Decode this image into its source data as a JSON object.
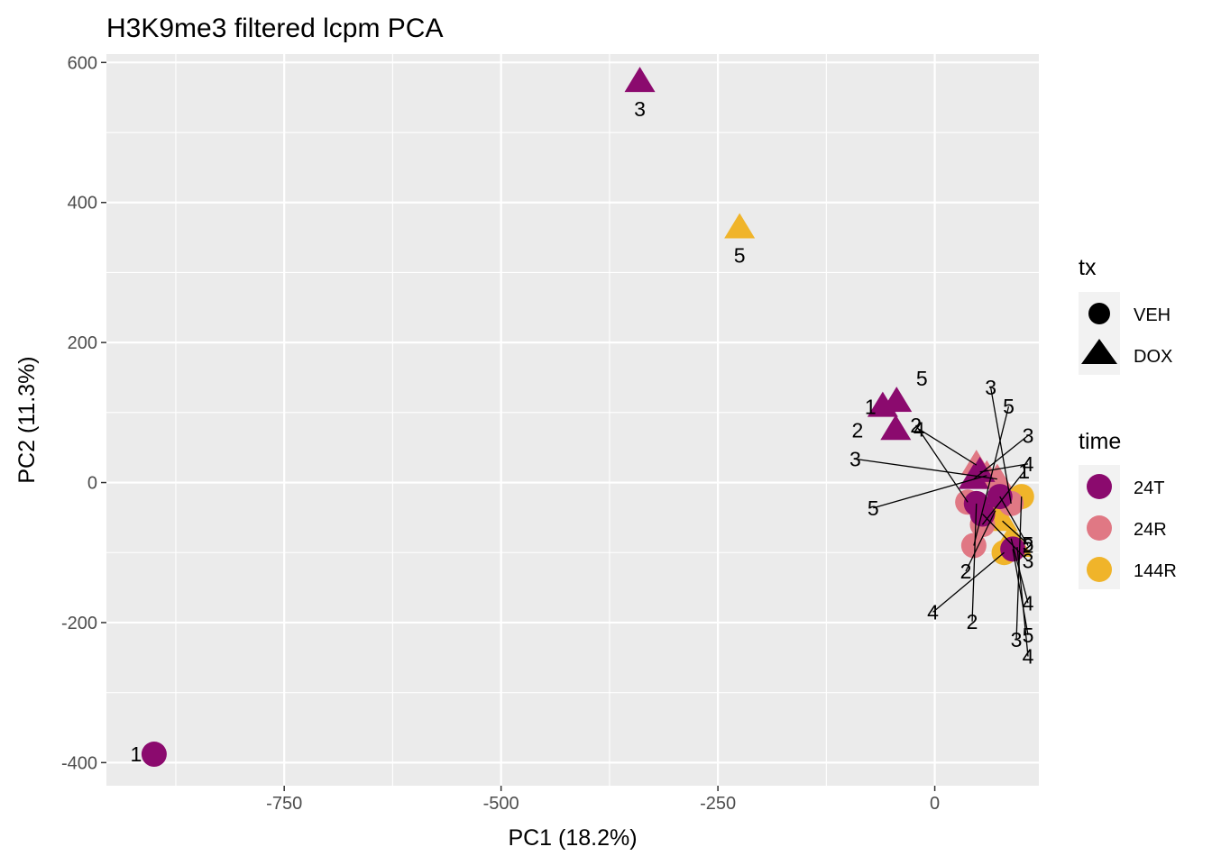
{
  "chart_data": {
    "type": "scatter",
    "title": "H3K9me3 filtered lcpm PCA",
    "xlabel": "PC1 (18.2%)",
    "ylabel": "PC2 (11.3%)",
    "xlim": [
      -955,
      120
    ],
    "ylim": [
      -433,
      612
    ],
    "xticks": [
      -750,
      -500,
      -250,
      0
    ],
    "xtick_labels": [
      "-750",
      "-500",
      "-250",
      "0"
    ],
    "yticks": [
      -400,
      -200,
      0,
      200,
      400,
      600
    ],
    "ytick_labels": [
      "-400",
      "-200",
      "0",
      "200",
      "400",
      "600"
    ],
    "grid": true,
    "legend_position": "right",
    "legends": {
      "tx": {
        "title": "tx",
        "entries": [
          {
            "label": "VEH",
            "shape": "circle"
          },
          {
            "label": "DOX",
            "shape": "triangle"
          }
        ]
      },
      "time": {
        "title": "time",
        "entries": [
          {
            "label": "24T",
            "color": "#8B0A6E"
          },
          {
            "label": "24R",
            "color": "#E07884"
          },
          {
            "label": "144R",
            "color": "#F0B42A"
          }
        ]
      }
    },
    "points": [
      {
        "x": 78,
        "y": -55,
        "tx": "DOX",
        "time": "144R",
        "label": "5"
      },
      {
        "x": 88,
        "y": -80,
        "tx": "DOX",
        "time": "144R",
        "label": "4"
      },
      {
        "x": 95,
        "y": -92,
        "tx": "DOX",
        "time": "144R",
        "label": "4"
      },
      {
        "x": 100,
        "y": -20,
        "tx": "VEH",
        "time": "144R",
        "label": "3"
      },
      {
        "x": 70,
        "y": -40,
        "tx": "VEH",
        "time": "144R",
        "label": "2"
      },
      {
        "x": 80,
        "y": -100,
        "tx": "VEH",
        "time": "144R",
        "label": "4"
      },
      {
        "x": 60,
        "y": 10,
        "tx": "DOX",
        "time": "24R",
        "label": "5"
      },
      {
        "x": 72,
        "y": 5,
        "tx": "DOX",
        "time": "24R",
        "label": "3"
      },
      {
        "x": 48,
        "y": 25,
        "tx": "DOX",
        "time": "24R",
        "label": "4"
      },
      {
        "x": 38,
        "y": -28,
        "tx": "VEH",
        "time": "24R",
        "label": "2"
      },
      {
        "x": 88,
        "y": -30,
        "tx": "VEH",
        "time": "24R",
        "label": "3"
      },
      {
        "x": 45,
        "y": -90,
        "tx": "VEH",
        "time": "24R",
        "label": "5"
      },
      {
        "x": 55,
        "y": -60,
        "tx": "VEH",
        "time": "24R",
        "label": "1"
      },
      {
        "x": -60,
        "y": 108,
        "tx": "DOX",
        "time": "24T",
        "label": "2"
      },
      {
        "x": -44,
        "y": 115,
        "tx": "DOX",
        "time": "24T",
        "label": "5"
      },
      {
        "x": -45,
        "y": 75,
        "tx": "DOX",
        "time": "24T",
        "label": "1"
      },
      {
        "x": -340,
        "y": 572,
        "tx": "DOX",
        "time": "24T",
        "label": "3"
      },
      {
        "x": 45,
        "y": 5,
        "tx": "DOX",
        "time": "24T",
        "label": "3"
      },
      {
        "x": 52,
        "y": 15,
        "tx": "DOX",
        "time": "24T",
        "label": "4"
      },
      {
        "x": -900,
        "y": -388,
        "tx": "VEH",
        "time": "24T",
        "label": "1"
      },
      {
        "x": 75,
        "y": -20,
        "tx": "VEH",
        "time": "24T",
        "label": "2"
      },
      {
        "x": 55,
        "y": -45,
        "tx": "VEH",
        "time": "24T",
        "label": "3"
      },
      {
        "x": 90,
        "y": -95,
        "tx": "VEH",
        "time": "24T",
        "label": "5"
      },
      {
        "x": 48,
        "y": -30,
        "tx": "VEH",
        "time": "24T",
        "label": "2"
      },
      {
        "x": -225,
        "y": 363,
        "tx": "DOX",
        "time": "144R",
        "label": "5"
      }
    ]
  }
}
